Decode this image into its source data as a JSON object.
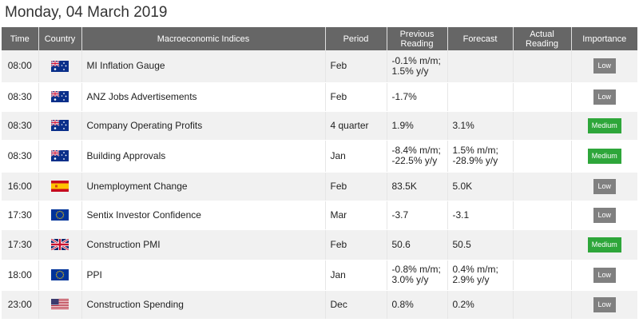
{
  "page": {
    "date_heading": "Monday, 04 March 2019"
  },
  "columns": {
    "time": "Time",
    "country": "Country",
    "indices": "Macroeconomic Indices",
    "period": "Period",
    "previous": [
      "Previous",
      "Reading"
    ],
    "forecast": "Forecast",
    "actual": [
      "Actual",
      "Reading"
    ],
    "importance": "Importance"
  },
  "colors": {
    "header_bg": "#666666",
    "low": "#808080",
    "medium": "#2ea63a"
  },
  "rows": [
    {
      "time": "08:00",
      "flag": "australia-flag-icon",
      "index": "MI Inflation Gauge",
      "period": "Feb",
      "previous": [
        "-0.1% m/m;",
        "1.5% y/y"
      ],
      "forecast": [
        "",
        ""
      ],
      "actual": "",
      "importance": "Low",
      "level": "low",
      "h": 40
    },
    {
      "time": "08:30",
      "flag": "australia-flag-icon",
      "index": "ANZ Jobs Advertisements",
      "period": "Feb",
      "previous": [
        "-1.7%",
        ""
      ],
      "forecast": [
        "",
        ""
      ],
      "actual": "",
      "importance": "Low",
      "level": "low",
      "h": 36
    },
    {
      "time": "08:30",
      "flag": "australia-flag-icon",
      "index": "Company Operating Profits",
      "period": "4 quarter",
      "previous": [
        "1.9%",
        ""
      ],
      "forecast": [
        "3.1%",
        ""
      ],
      "actual": "",
      "importance": "Medium",
      "level": "medium",
      "h": 36
    },
    {
      "time": "08:30",
      "flag": "australia-flag-icon",
      "index": "Building Approvals",
      "period": "Jan",
      "previous": [
        "-8.4% m/m;",
        "-22.5% y/y"
      ],
      "forecast": [
        "1.5% m/m;",
        "-28.9% y/y"
      ],
      "actual": "",
      "importance": "Medium",
      "level": "medium",
      "h": 40
    },
    {
      "time": "16:00",
      "flag": "spain-flag-icon",
      "index": "Unemployment Change",
      "period": "Feb",
      "previous": [
        "83.5K",
        ""
      ],
      "forecast": [
        "5.0K",
        ""
      ],
      "actual": "",
      "importance": "Low",
      "level": "low",
      "h": 36
    },
    {
      "time": "17:30",
      "flag": "eu-flag-icon",
      "index": "Sentix Investor Confidence",
      "period": "Mar",
      "previous": [
        "-3.7",
        ""
      ],
      "forecast": [
        "-3.1",
        ""
      ],
      "actual": "",
      "importance": "Low",
      "level": "low",
      "h": 36
    },
    {
      "time": "17:30",
      "flag": "uk-flag-icon",
      "index": "Construction PMI",
      "period": "Feb",
      "previous": [
        "50.6",
        ""
      ],
      "forecast": [
        "50.5",
        ""
      ],
      "actual": "",
      "importance": "Medium",
      "level": "medium",
      "h": 38
    },
    {
      "time": "18:00",
      "flag": "eu-flag-icon",
      "index": "PPI",
      "period": "Jan",
      "previous": [
        "-0.8% m/m;",
        "3.0% y/y"
      ],
      "forecast": [
        "0.4% m/m;",
        "2.9% y/y"
      ],
      "actual": "",
      "importance": "Low",
      "level": "low",
      "h": 38
    },
    {
      "time": "23:00",
      "flag": "usa-flag-icon",
      "index": "Construction Spending",
      "period": "Dec",
      "previous": [
        "0.8%",
        ""
      ],
      "forecast": [
        "0.2%",
        ""
      ],
      "actual": "",
      "importance": "Low",
      "level": "low",
      "h": 36
    }
  ]
}
